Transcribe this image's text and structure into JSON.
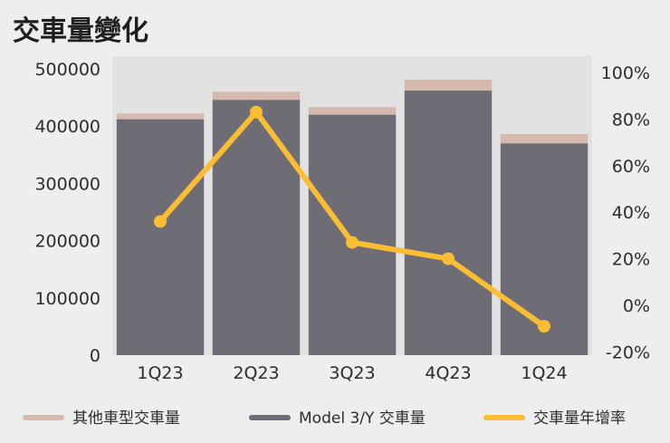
{
  "chart_data": {
    "type": "bar",
    "title": "交車量變化",
    "categories": [
      "1Q23",
      "2Q23",
      "3Q23",
      "4Q23",
      "1Q24"
    ],
    "series": [
      {
        "name": "Model 3/Y 交車量",
        "type": "stacked-bar",
        "axis": "left",
        "color": "#6e6c74",
        "values": [
          412000,
          446000,
          420000,
          462000,
          370000
        ]
      },
      {
        "name": "其他車型交車量",
        "type": "stacked-bar",
        "axis": "left",
        "color": "#d5b8ae",
        "values": [
          10000,
          14000,
          13000,
          19000,
          16000
        ]
      },
      {
        "name": "交車量年增率",
        "type": "line",
        "axis": "right",
        "color": "#fbbd33",
        "values": [
          36,
          83,
          27,
          20,
          -9
        ]
      }
    ],
    "y_left": {
      "min": 0,
      "max": 500000,
      "ticks": [
        "0",
        "100000",
        "200000",
        "300000",
        "400000",
        "500000"
      ]
    },
    "y_right": {
      "min": -20,
      "max": 100,
      "ticks": [
        "-20%",
        "0%",
        "20%",
        "40%",
        "60%",
        "80%",
        "100%"
      ]
    },
    "grid": false,
    "legend_position": "bottom"
  }
}
